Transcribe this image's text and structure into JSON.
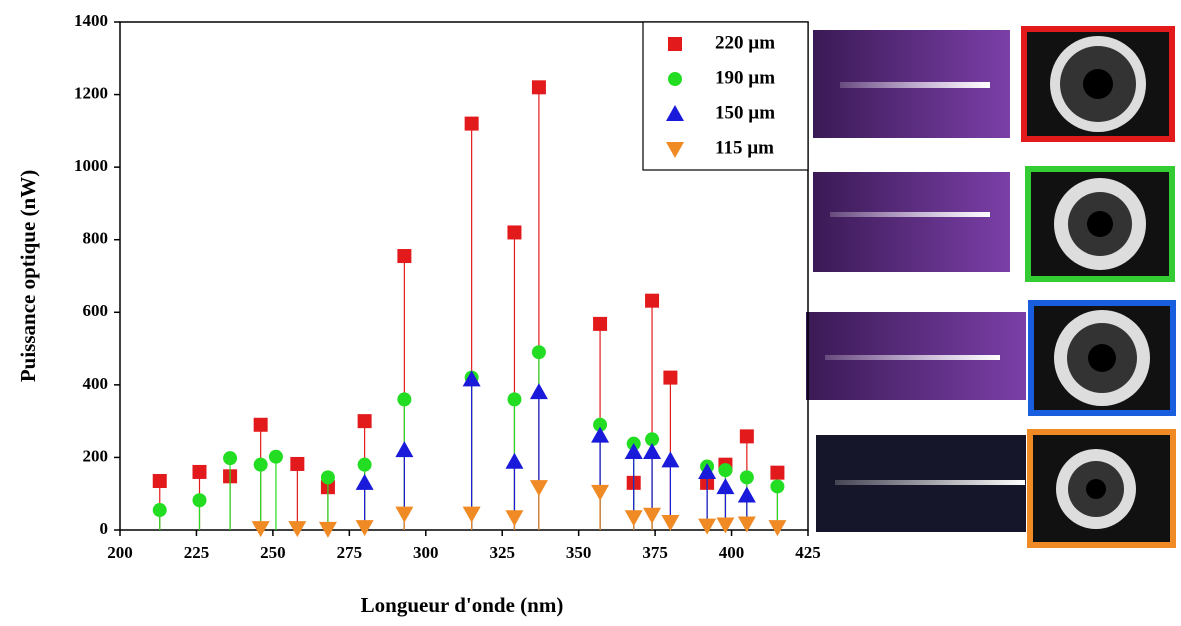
{
  "chart_data": {
    "type": "stem",
    "x_label": "Longueur d'onde (nm)",
    "y_label": "Puissance optique (nW)",
    "xlim": [
      200,
      425
    ],
    "xticks": [
      200,
      225,
      250,
      275,
      300,
      325,
      350,
      375,
      400,
      425
    ],
    "ylim": [
      0,
      1400
    ],
    "yticks": [
      0,
      200,
      400,
      600,
      800,
      1000,
      1200,
      1400
    ],
    "legend": "upper right",
    "series": [
      {
        "name": "220 µm",
        "color": "#e31a1c",
        "marker": "square",
        "x": [
          213,
          226,
          236,
          246,
          258,
          268,
          280,
          293,
          315,
          329,
          337,
          357,
          368,
          374,
          380,
          392,
          398,
          405,
          415
        ],
        "values": [
          135,
          160,
          148,
          290,
          182,
          118,
          300,
          755,
          1120,
          820,
          1220,
          568,
          130,
          632,
          420,
          130,
          180,
          258,
          158
        ]
      },
      {
        "name": "190 µm",
        "color": "#22dd22",
        "marker": "circle",
        "x": [
          213,
          226,
          236,
          246,
          251,
          268,
          280,
          293,
          315,
          329,
          337,
          357,
          368,
          374,
          392,
          398,
          405,
          415
        ],
        "values": [
          55,
          82,
          198,
          180,
          202,
          145,
          180,
          360,
          420,
          360,
          490,
          290,
          238,
          250,
          175,
          165,
          145,
          120
        ]
      },
      {
        "name": "150 µm",
        "color": "#1a1adb",
        "marker": "triangle-up",
        "x": [
          280,
          293,
          315,
          329,
          337,
          357,
          368,
          374,
          380,
          392,
          398,
          405
        ],
        "values": [
          130,
          220,
          415,
          188,
          380,
          260,
          215,
          215,
          192,
          160,
          118,
          95
        ]
      },
      {
        "name": "115 µm",
        "color": "#f08a24",
        "marker": "triangle-down",
        "x": [
          246,
          258,
          268,
          280,
          293,
          315,
          329,
          337,
          357,
          368,
          374,
          380,
          392,
          398,
          405,
          415
        ],
        "values": [
          5,
          5,
          3,
          8,
          45,
          45,
          35,
          118,
          105,
          35,
          42,
          22,
          12,
          15,
          18,
          8
        ]
      }
    ]
  }
}
